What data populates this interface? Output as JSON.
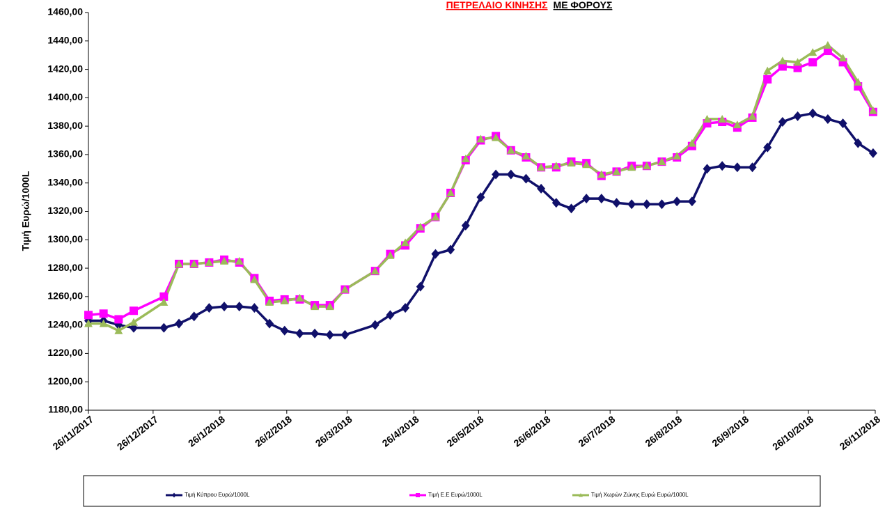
{
  "chart_data": {
    "type": "line",
    "title": [
      {
        "text": "ΠΕΤΡΕΛΑΙΟ ΚΙΝΗΣΗΣ",
        "color": "#ff0000"
      },
      {
        "text": "ΜΕ  ΦΟΡΟΥΣ",
        "color": "#000000"
      }
    ],
    "y_label": "Τιμή Ευρώ/1000L",
    "x": [
      "26/11/2017",
      "3/12/2017",
      "10/12/2017",
      "17/12/2017",
      "31/12/2017",
      "7/1/2018",
      "14/1/2018",
      "21/1/2018",
      "28/1/2018",
      "4/2/2018",
      "11/2/2018",
      "18/2/2018",
      "25/2/2018",
      "4/3/2018",
      "11/3/2018",
      "18/3/2018",
      "25/3/2018",
      "8/4/2018",
      "15/4/2018",
      "22/4/2018",
      "29/4/2018",
      "6/5/2018",
      "13/5/2018",
      "20/5/2018",
      "27/5/2018",
      "3/6/2018",
      "10/6/2018",
      "17/6/2018",
      "24/6/2018",
      "1/7/2018",
      "8/7/2018",
      "15/7/2018",
      "22/7/2018",
      "29/7/2018",
      "5/8/2018",
      "12/8/2018",
      "19/8/2018",
      "26/8/2018",
      "2/9/2018",
      "9/9/2018",
      "16/9/2018",
      "23/9/2018",
      "30/9/2018",
      "7/10/2018",
      "14/10/2018",
      "21/10/2018",
      "28/10/2018",
      "4/11/2018",
      "11/11/2018",
      "18/11/2018",
      "25/11/2018"
    ],
    "series": [
      {
        "name": "Τιμή Κύπρου Ευρώ/1000L",
        "color": "#10106a",
        "marker": "diamond",
        "values": [
          1243,
          1243,
          1240,
          1238,
          1238,
          1241,
          1246,
          1252,
          1253,
          1253,
          1252,
          1241,
          1236,
          1234,
          1234,
          1233,
          1233,
          1240,
          1247,
          1252,
          1267,
          1290,
          1293,
          1310,
          1330,
          1346,
          1346,
          1343,
          1336,
          1326,
          1322,
          1329,
          1329,
          1326,
          1325,
          1325,
          1325,
          1327,
          1327,
          1350,
          1352,
          1351,
          1351,
          1365,
          1383,
          1387,
          1389,
          1385,
          1382,
          1368,
          1361
        ]
      },
      {
        "name": "Τιμή Ε.Ε Ευρώ/1000L",
        "color": "#ff00ff",
        "marker": "square",
        "values": [
          1247,
          1248,
          1244,
          1250,
          1260,
          1283,
          1283,
          1284,
          1286,
          1284,
          1273,
          1257,
          1258,
          1258,
          1254,
          1254,
          1265,
          1278,
          1290,
          1296,
          1308,
          1316,
          1333,
          1356,
          1370,
          1373,
          1363,
          1358,
          1351,
          1351,
          1355,
          1354,
          1345,
          1348,
          1352,
          1352,
          1355,
          1358,
          1366,
          1382,
          1383,
          1379,
          1386,
          1413,
          1422,
          1421,
          1425,
          1433,
          1425,
          1408,
          1390
        ]
      },
      {
        "name": "Τιμή Χωρών Ζώνης Ευρώ Ευρώ/1000L",
        "color": "#9bbb59",
        "marker": "triangle",
        "values": [
          1241,
          1241,
          1236,
          1242,
          1256,
          1283,
          1283,
          1284,
          1285,
          1285,
          1272,
          1256,
          1257,
          1259,
          1253,
          1253,
          1265,
          1278,
          1289,
          1298,
          1309,
          1316,
          1333,
          1357,
          1371,
          1372,
          1363,
          1359,
          1351,
          1352,
          1354,
          1353,
          1346,
          1348,
          1351,
          1352,
          1355,
          1359,
          1368,
          1385,
          1385,
          1381,
          1387,
          1419,
          1426,
          1425,
          1432,
          1437,
          1428,
          1411,
          1391
        ]
      }
    ],
    "xlim": [
      "26/11/2017",
      "26/11/2018"
    ],
    "xticks": [
      "26/11/2017",
      "26/12/2017",
      "26/1/2018",
      "26/2/2018",
      "26/3/2018",
      "26/4/2018",
      "26/5/2018",
      "26/6/2018",
      "26/7/2018",
      "26/8/2018",
      "26/9/2018",
      "26/10/2018",
      "26/11/2018"
    ],
    "ylim": [
      1180,
      1460
    ],
    "yticks": [
      {
        "value": 1180,
        "label": "1180,00"
      },
      {
        "value": 1200,
        "label": "1200,00"
      },
      {
        "value": 1220,
        "label": "1220,00"
      },
      {
        "value": 1240,
        "label": "1240,00"
      },
      {
        "value": 1260,
        "label": "1260,00"
      },
      {
        "value": 1280,
        "label": "1280,00"
      },
      {
        "value": 1300,
        "label": "1300,00"
      },
      {
        "value": 1320,
        "label": "1320,00"
      },
      {
        "value": 1340,
        "label": "1340,00"
      },
      {
        "value": 1360,
        "label": "1360,00"
      },
      {
        "value": 1380,
        "label": "1380,00"
      },
      {
        "value": 1400,
        "label": "1400,00"
      },
      {
        "value": 1420,
        "label": "1420,00"
      },
      {
        "value": 1440,
        "label": "1440,00"
      },
      {
        "value": 1460,
        "label": "1460,00"
      }
    ],
    "grid": false,
    "legend": "bottom"
  }
}
